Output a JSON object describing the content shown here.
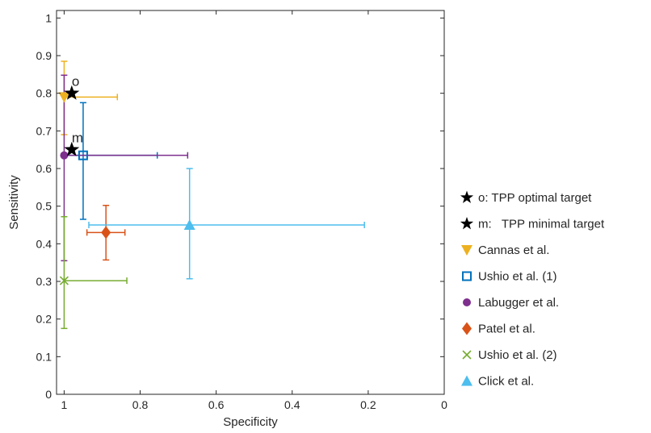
{
  "chart_data": {
    "type": "scatter",
    "title": "",
    "xlabel": "Specificity",
    "ylabel": "Sensitivity",
    "xlim": [
      1.02,
      0
    ],
    "ylim": [
      0,
      1.02
    ],
    "x_reversed": true,
    "xticks": [
      "1",
      "0.8",
      "0.6",
      "0.4",
      "0.2",
      "0"
    ],
    "yticks": [
      "0",
      "0.1",
      "0.2",
      "0.3",
      "0.4",
      "0.5",
      "0.6",
      "0.7",
      "0.8",
      "0.9",
      "1"
    ],
    "grid": false,
    "legend_position": "right",
    "series": [
      {
        "name": "o: TPP optimal target",
        "marker": "star",
        "color": "#000000",
        "x": 0.98,
        "y": 0.8,
        "annotation": "o"
      },
      {
        "name": "m:   TPP minimal target",
        "marker": "star",
        "color": "#000000",
        "x": 0.98,
        "y": 0.65,
        "annotation": "m"
      },
      {
        "name": "Cannas et al.",
        "marker": "triangle-down",
        "color": "#EDB120",
        "x": 1.0,
        "y": 0.79,
        "x_err": [
          1.0,
          0.86
        ],
        "y_err": [
          0.69,
          0.885
        ]
      },
      {
        "name": "Ushio et al. (1)",
        "marker": "square-open",
        "color": "#0072BD",
        "x": 0.95,
        "y": 0.635,
        "x_err": [
          1.0,
          0.755
        ],
        "y_err": [
          0.465,
          0.775
        ]
      },
      {
        "name": "Labugger et al.",
        "marker": "circle",
        "color": "#7E2F8E",
        "x": 1.0,
        "y": 0.635,
        "x_err": [
          1.0,
          0.675
        ],
        "y_err": [
          0.355,
          0.848
        ]
      },
      {
        "name": "Patel et al.",
        "marker": "diamond",
        "color": "#D95319",
        "x": 0.89,
        "y": 0.43,
        "x_err": [
          0.94,
          0.84
        ],
        "y_err": [
          0.357,
          0.502
        ]
      },
      {
        "name": "Ushio et al. (2)",
        "marker": "x",
        "color": "#77AC30",
        "x": 1.0,
        "y": 0.302,
        "x_err": [
          1.0,
          0.835
        ],
        "y_err": [
          0.175,
          0.472
        ]
      },
      {
        "name": "Click et al.",
        "marker": "triangle-up",
        "color": "#4DBEEE",
        "x": 0.67,
        "y": 0.45,
        "x_err": [
          0.935,
          0.21
        ],
        "y_err": [
          0.307,
          0.6
        ]
      }
    ]
  }
}
